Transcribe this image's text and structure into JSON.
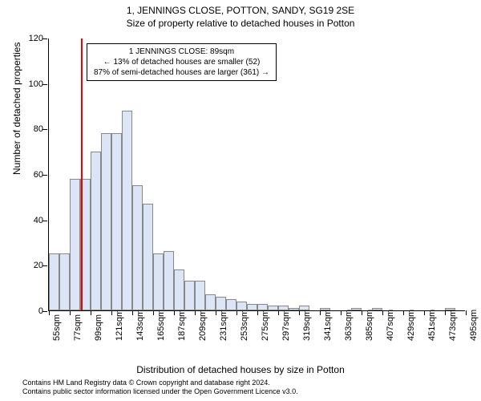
{
  "title_main": "1, JENNINGS CLOSE, POTTON, SANDY, SG19 2SE",
  "title_sub": "Size of property relative to detached houses in Potton",
  "y_axis_title": "Number of detached properties",
  "x_axis_title": "Distribution of detached houses by size in Potton",
  "chart": {
    "type": "histogram",
    "ylim": [
      0,
      120
    ],
    "yticks": [
      0,
      20,
      40,
      60,
      80,
      100,
      120
    ],
    "xticks": [
      55,
      77,
      99,
      121,
      143,
      165,
      187,
      209,
      231,
      253,
      275,
      297,
      319,
      341,
      363,
      385,
      407,
      429,
      451,
      473,
      495
    ],
    "xtick_suffix": "sqm",
    "bar_color": "#dce5f5",
    "bar_border": "#888888",
    "vline_color": "#ee0000",
    "vline_x": 89,
    "bars": [
      {
        "x": 55,
        "h": 25
      },
      {
        "x": 66,
        "h": 25
      },
      {
        "x": 77,
        "h": 58
      },
      {
        "x": 88,
        "h": 58
      },
      {
        "x": 99,
        "h": 70
      },
      {
        "x": 110,
        "h": 78
      },
      {
        "x": 121,
        "h": 78
      },
      {
        "x": 132,
        "h": 88
      },
      {
        "x": 143,
        "h": 55
      },
      {
        "x": 154,
        "h": 47
      },
      {
        "x": 165,
        "h": 25
      },
      {
        "x": 176,
        "h": 26
      },
      {
        "x": 187,
        "h": 18
      },
      {
        "x": 198,
        "h": 13
      },
      {
        "x": 209,
        "h": 13
      },
      {
        "x": 220,
        "h": 7
      },
      {
        "x": 231,
        "h": 6
      },
      {
        "x": 242,
        "h": 5
      },
      {
        "x": 253,
        "h": 4
      },
      {
        "x": 264,
        "h": 3
      },
      {
        "x": 275,
        "h": 3
      },
      {
        "x": 286,
        "h": 2
      },
      {
        "x": 297,
        "h": 2
      },
      {
        "x": 308,
        "h": 1
      },
      {
        "x": 319,
        "h": 2
      },
      {
        "x": 330,
        "h": 0
      },
      {
        "x": 341,
        "h": 1
      },
      {
        "x": 352,
        "h": 0
      },
      {
        "x": 363,
        "h": 0
      },
      {
        "x": 374,
        "h": 1
      },
      {
        "x": 385,
        "h": 0
      },
      {
        "x": 396,
        "h": 1
      },
      {
        "x": 407,
        "h": 0
      },
      {
        "x": 418,
        "h": 0
      },
      {
        "x": 429,
        "h": 0
      },
      {
        "x": 440,
        "h": 0
      },
      {
        "x": 451,
        "h": 0
      },
      {
        "x": 462,
        "h": 0
      },
      {
        "x": 473,
        "h": 1
      },
      {
        "x": 484,
        "h": 0
      }
    ],
    "x_range": [
      55,
      495
    ]
  },
  "annotation": {
    "line1": "1 JENNINGS CLOSE: 89sqm",
    "line2": "← 13% of detached houses are smaller (52)",
    "line3": "87% of semi-detached houses are larger (361) →"
  },
  "footer_line1": "Contains HM Land Registry data © Crown copyright and database right 2024.",
  "footer_line2": "Contains public sector information licensed under the Open Government Licence v3.0."
}
